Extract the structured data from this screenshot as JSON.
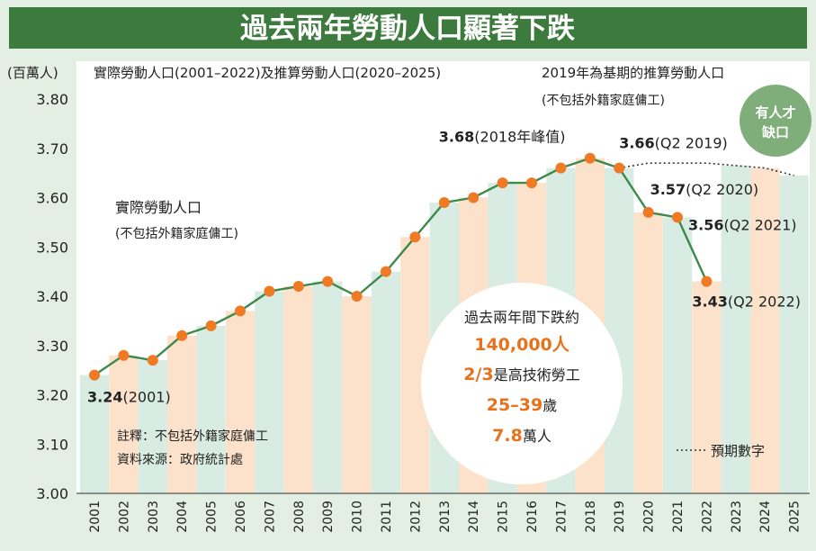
{
  "chart_data": {
    "type": "line",
    "title": "過去兩年勞動人口顯著下跌",
    "unit_label": "(百萬人)",
    "legend": {
      "actual_series": "實際勞動人口(2001–2022)及推算勞動人口(2020–2025)",
      "projection_series": "2019年為基期的推算勞動人口",
      "projection_note": "(不包括外籍家庭傭工)",
      "dotted_line_label": "預期數字"
    },
    "series_label": {
      "name": "實際勞動人口",
      "note": "(不包括外籍家庭傭工)"
    },
    "badge": {
      "line1": "有人才",
      "line2": "缺口"
    },
    "yaxis": {
      "ylim": [
        3.0,
        3.8
      ],
      "ticks": [
        "3.00",
        "3.10",
        "3.20",
        "3.30",
        "3.40",
        "3.50",
        "3.60",
        "3.70",
        "3.80"
      ]
    },
    "categories": [
      "2001",
      "2002",
      "2003",
      "2004",
      "2005",
      "2006",
      "2007",
      "2008",
      "2009",
      "2010",
      "2011",
      "2012",
      "2013",
      "2014",
      "2015",
      "2016",
      "2017",
      "2018",
      "2019",
      "2020",
      "2021",
      "2022",
      "2023",
      "2024",
      "2025"
    ],
    "series": [
      {
        "name": "實際勞動人口",
        "x": [
          "2001",
          "2002",
          "2003",
          "2004",
          "2005",
          "2006",
          "2007",
          "2008",
          "2009",
          "2010",
          "2011",
          "2012",
          "2013",
          "2014",
          "2015",
          "2016",
          "2017",
          "2018",
          "2019",
          "2020",
          "2021",
          "2022"
        ],
        "values": [
          3.24,
          3.28,
          3.27,
          3.32,
          3.34,
          3.37,
          3.41,
          3.42,
          3.43,
          3.4,
          3.45,
          3.52,
          3.59,
          3.6,
          3.63,
          3.63,
          3.66,
          3.68,
          3.66,
          3.57,
          3.56,
          3.43
        ]
      },
      {
        "name": "2019年為基期的推算勞動人口",
        "x": [
          "2019",
          "2020",
          "2021",
          "2022",
          "2023",
          "2024",
          "2025"
        ],
        "values": [
          3.66,
          3.67,
          3.67,
          3.67,
          3.665,
          3.66,
          3.645
        ]
      }
    ],
    "annotations": [
      {
        "idx": 0,
        "value": "3.24",
        "text": "(2001)"
      },
      {
        "idx": 17,
        "value": "3.68",
        "text": "(2018年峰值)"
      },
      {
        "idx": 18,
        "value": "3.66",
        "text": "(Q2 2019)"
      },
      {
        "idx": 19,
        "value": "3.57",
        "text": "(Q2 2020)"
      },
      {
        "idx": 20,
        "value": "3.56",
        "text": "(Q2 2021)"
      },
      {
        "idx": 21,
        "value": "3.43",
        "text": "(Q2 2022)"
      }
    ],
    "circle_box": {
      "line1": "過去兩年間下跌約",
      "line2_value": "140,000人",
      "line3_value": "2/3",
      "line3_text": "是高技術勞工",
      "line4_value": "25–39",
      "line4_text": "歲",
      "line5_value": "7.8",
      "line5_text": "萬人"
    },
    "notes": {
      "note_line": "註釋：不包括外籍家庭傭工",
      "source_line": "資料來源：政府統計處"
    },
    "colors": {
      "banner": "#3d7a3e",
      "line": "#3d8a4a",
      "marker": "#f07a23",
      "accent_text": "#e8711c",
      "band_orange": "#fde2cb",
      "band_green": "#d8ece4",
      "badge": "#7fae7a"
    }
  }
}
